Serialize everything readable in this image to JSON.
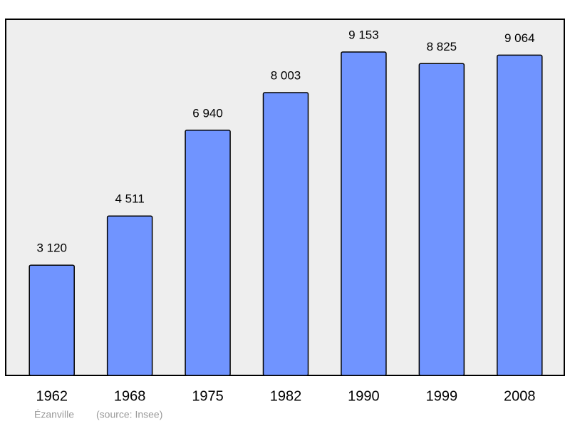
{
  "chart_data": {
    "type": "bar",
    "categories": [
      "1962",
      "1968",
      "1975",
      "1982",
      "1990",
      "1999",
      "2008"
    ],
    "values": [
      3120,
      4511,
      6940,
      8003,
      9153,
      8825,
      9064
    ],
    "value_labels": [
      "3 120",
      "4 511",
      "6 940",
      "8 003",
      "9 153",
      "8 825",
      "9 064"
    ],
    "color": "#7094ff",
    "footer": {
      "place": "Ézanville",
      "source": "(source: Insee)"
    }
  }
}
